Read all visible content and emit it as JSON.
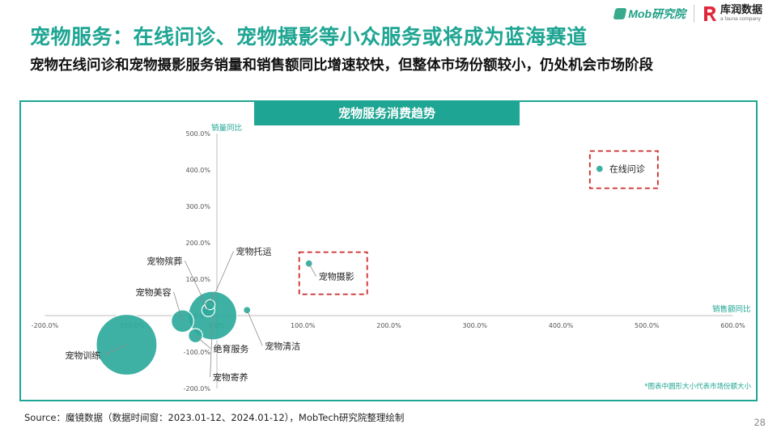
{
  "header": {
    "mob_logo_text": "Mob研究院",
    "kuliang_logo_text": "库润数据",
    "kuliang_logo_sub": "a fauna company"
  },
  "title": "宠物服务：在线问诊、宠物摄影等小众服务或将成为蓝海赛道",
  "subtitle": "宠物在线问诊和宠物摄影服务销量和销售额同比增速较快，但整体市场份额较小，仍处机会市场阶段",
  "chart_data": {
    "type": "scatter",
    "title": "宠物服务消费趋势",
    "xlabel": "销售额同比",
    "ylabel": "销量同比",
    "xlim": [
      -200,
      600
    ],
    "ylim": [
      -200,
      500
    ],
    "x_ticks": [
      "-200.0%",
      "-100.0%",
      "0.0%",
      "100.0%",
      "200.0%",
      "300.0%",
      "400.0%",
      "500.0%",
      "600.0%"
    ],
    "y_ticks": [
      "-200.0%",
      "-100.0%",
      "0.0%",
      "100.0%",
      "200.0%",
      "300.0%",
      "400.0%",
      "500.0%"
    ],
    "bubble_size_meaning": "share",
    "points": [
      {
        "name": "在线问诊",
        "x": 445,
        "y": 403,
        "share": 0.1
      },
      {
        "name": "宠物摄影",
        "x": 107,
        "y": 143,
        "share": 0.3
      },
      {
        "name": "宠物托运",
        "x": -8,
        "y": 30,
        "share": 0.6
      },
      {
        "name": "宠物殡葬",
        "x": -10,
        "y": 15,
        "share": 1.0
      },
      {
        "name": "宠物清洁",
        "x": 35,
        "y": 15,
        "share": 0.3
      },
      {
        "name": "宠物美容",
        "x": -40,
        "y": -15,
        "share": 3.0
      },
      {
        "name": "绝育服务",
        "x": -25,
        "y": -55,
        "share": 1.2
      },
      {
        "name": "宠物寄养",
        "x": -5,
        "y": 0,
        "share": 14.0
      },
      {
        "name": "宠物训练",
        "x": -105,
        "y": -80,
        "share": 22.0
      }
    ],
    "note": "*图表中圆形大小代表市场份额大小",
    "highlight_color": "#cc2a2a",
    "bubble_color": "#2eaa9c",
    "axis_label_color": "#1fa593"
  },
  "footer": {
    "source": "Source：魔镜数据（数据时间窗：2023.01-12、2024.01-12），MobTech研究院整理绘制",
    "page_number": "28"
  }
}
